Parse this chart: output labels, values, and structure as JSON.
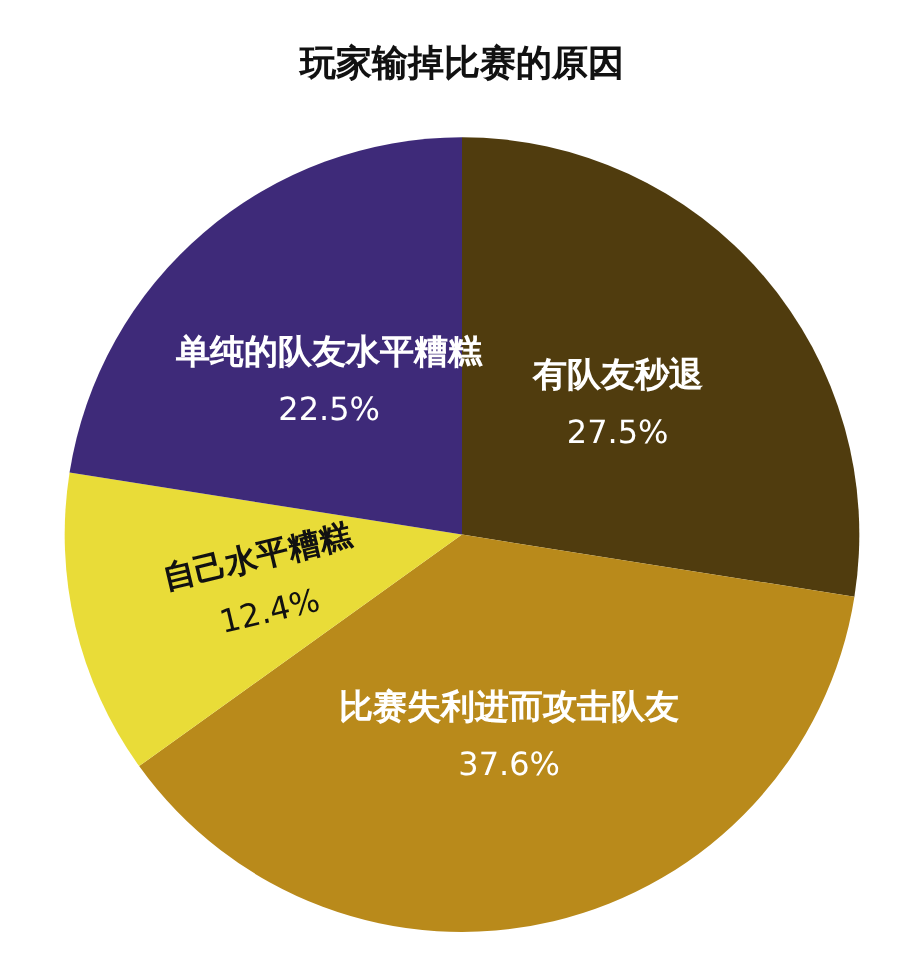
{
  "chart_data": {
    "type": "pie",
    "title": "玩家输掉比赛的原因",
    "categories": [
      "有队友秒退",
      "比赛失利进而攻击队友",
      "自己水平糟糕",
      "单纯的队友水平糟糕"
    ],
    "values": [
      27.5,
      37.6,
      12.4,
      22.5
    ],
    "value_labels": [
      "27.5%",
      "37.6%",
      "12.4%",
      "22.5%"
    ],
    "colors": [
      "#503c0e",
      "#b98a1b",
      "#e9dc38",
      "#3e2a79"
    ],
    "legend": false
  }
}
